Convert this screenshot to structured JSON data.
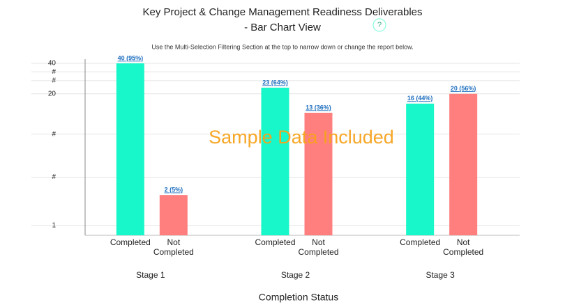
{
  "chart_data": {
    "type": "bar",
    "title_lines": [
      "Key Project & Change Management Readiness Deliverables",
      "- Bar Chart View"
    ],
    "help_icon": "?",
    "subtitle": "Use the Multi-Selection Filtering Section at the top to narrow down or change the report below.",
    "annotation": "Sample Data Included",
    "x_label": "Completion Status",
    "categories": [
      "Stage 1",
      "Stage 2",
      "Stage 3"
    ],
    "series": [
      {
        "name": "Completed",
        "color": "#17f7c9",
        "values": [
          40,
          23,
          16
        ],
        "value_labels": [
          "40 (95%)",
          "23 (64%)",
          "16 (44%)"
        ]
      },
      {
        "name": "Not Completed",
        "color": "#ff7f7f",
        "values": [
          2,
          13,
          20
        ],
        "value_labels": [
          "2 (5%)",
          "13 (36%)",
          "20 (56%)"
        ]
      }
    ],
    "log_scale": true,
    "ylim": [
      0.8,
      40
    ],
    "yticks": [
      1,
      {
        "value": 3,
        "label": "#"
      },
      {
        "value": 8,
        "label": "#"
      },
      20,
      {
        "value": 27,
        "label": "#"
      },
      {
        "value": 33,
        "label": "#"
      },
      40
    ],
    "grid": true
  }
}
